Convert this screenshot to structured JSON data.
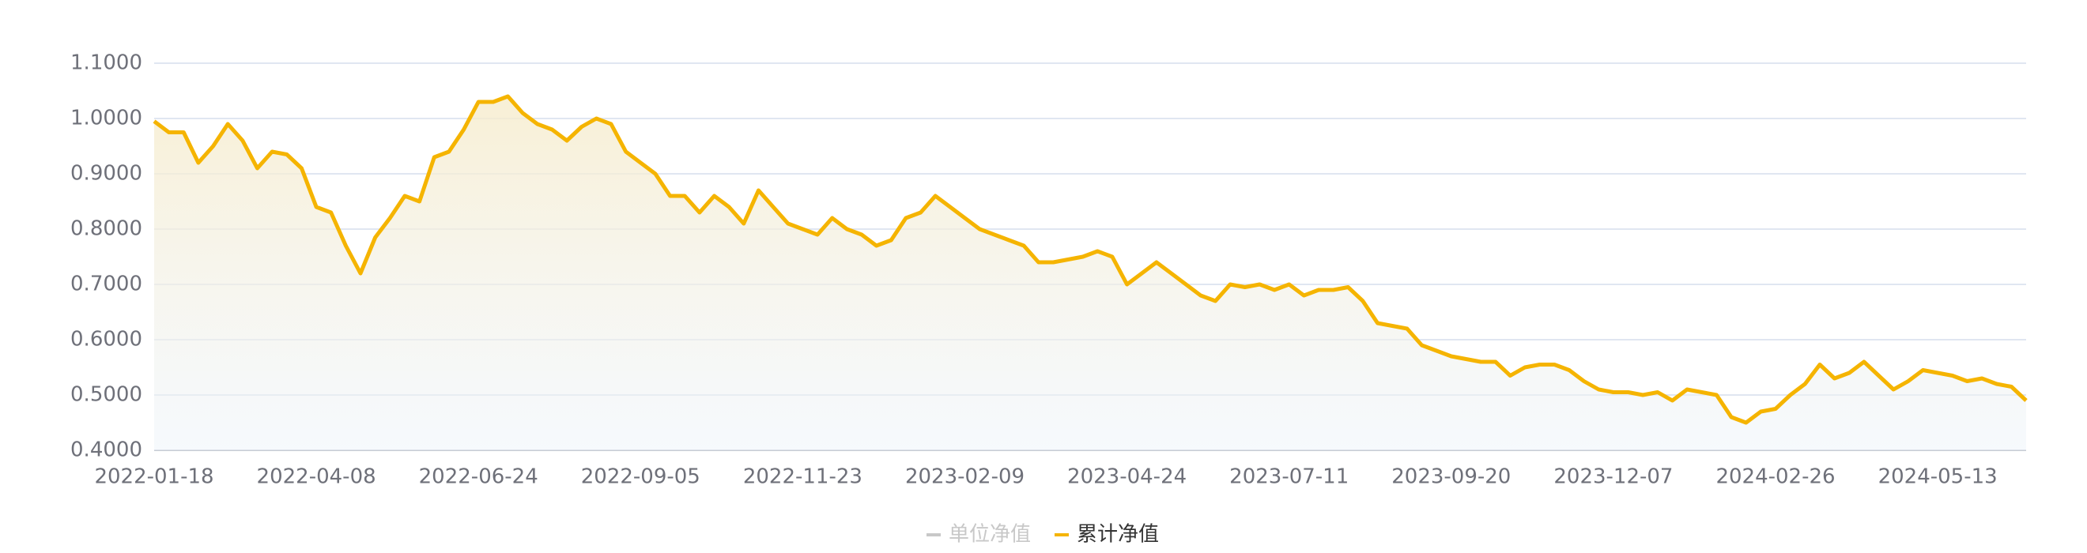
{
  "chart_data": {
    "type": "line",
    "categories": [
      "2022-01-18",
      null,
      null,
      null,
      null,
      null,
      null,
      null,
      null,
      null,
      null,
      "2022-04-08",
      null,
      null,
      null,
      null,
      null,
      null,
      null,
      null,
      null,
      null,
      "2022-06-24",
      null,
      null,
      null,
      null,
      null,
      null,
      null,
      null,
      null,
      null,
      "2022-09-05",
      null,
      null,
      null,
      null,
      null,
      null,
      null,
      null,
      null,
      null,
      "2022-11-23",
      null,
      null,
      null,
      null,
      null,
      null,
      null,
      null,
      null,
      null,
      "2023-02-09",
      null,
      null,
      null,
      null,
      null,
      null,
      null,
      null,
      null,
      null,
      "2023-04-24",
      null,
      null,
      null,
      null,
      null,
      null,
      null,
      null,
      null,
      null,
      "2023-07-11",
      null,
      null,
      null,
      null,
      null,
      null,
      null,
      null,
      null,
      null,
      "2023-09-20",
      null,
      null,
      null,
      null,
      null,
      null,
      null,
      null,
      null,
      null,
      "2023-12-07",
      null,
      null,
      null,
      null,
      null,
      null,
      null,
      null,
      null,
      null,
      "2024-02-26",
      null,
      null,
      null,
      null,
      null,
      null,
      null,
      null,
      null,
      null,
      "2024-05-13",
      null,
      null,
      null,
      null,
      null,
      null
    ],
    "series": [
      {
        "name": "累计净值",
        "color": "#f5b400",
        "values": [
          0.995,
          0.975,
          0.975,
          0.92,
          0.95,
          0.99,
          0.96,
          0.91,
          0.94,
          0.935,
          0.91,
          0.84,
          0.83,
          0.77,
          0.72,
          0.785,
          0.82,
          0.86,
          0.85,
          0.93,
          0.94,
          0.98,
          1.03,
          1.03,
          1.04,
          1.01,
          0.99,
          0.98,
          0.96,
          0.985,
          1.0,
          0.99,
          0.94,
          0.92,
          0.9,
          0.86,
          0.86,
          0.83,
          0.86,
          0.84,
          0.81,
          0.87,
          0.84,
          0.81,
          0.8,
          0.79,
          0.82,
          0.8,
          0.79,
          0.77,
          0.78,
          0.82,
          0.83,
          0.86,
          0.84,
          0.82,
          0.8,
          0.79,
          0.78,
          0.77,
          0.74,
          0.74,
          0.745,
          0.75,
          0.76,
          0.75,
          0.7,
          0.72,
          0.74,
          0.72,
          0.7,
          0.68,
          0.67,
          0.7,
          0.695,
          0.7,
          0.69,
          0.7,
          0.68,
          0.69,
          0.69,
          0.695,
          0.67,
          0.63,
          0.625,
          0.62,
          0.59,
          0.58,
          0.57,
          0.565,
          0.56,
          0.56,
          0.535,
          0.55,
          0.555,
          0.555,
          0.545,
          0.525,
          0.51,
          0.505,
          0.505,
          0.5,
          0.505,
          0.49,
          0.51,
          0.505,
          0.5,
          0.46,
          0.45,
          0.47,
          0.475,
          0.5,
          0.52,
          0.555,
          0.53,
          0.54,
          0.56,
          0.535,
          0.51,
          0.525,
          0.545,
          0.54,
          0.535,
          0.525,
          0.53,
          0.52,
          0.515,
          0.49
        ]
      }
    ],
    "hidden_series": [
      {
        "name": "单位净值",
        "color": "#c8c8c8"
      }
    ],
    "ylim": [
      0.4,
      1.1
    ],
    "yticks": [
      {
        "value": 0.4,
        "label": "0.4000"
      },
      {
        "value": 0.5,
        "label": "0.5000"
      },
      {
        "value": 0.6,
        "label": "0.6000"
      },
      {
        "value": 0.7,
        "label": "0.7000"
      },
      {
        "value": 0.8,
        "label": "0.8000"
      },
      {
        "value": 0.9,
        "label": "0.9000"
      },
      {
        "value": 1.0,
        "label": "1.0000"
      },
      {
        "value": 1.1,
        "label": "1.1000"
      }
    ],
    "grid": true
  }
}
